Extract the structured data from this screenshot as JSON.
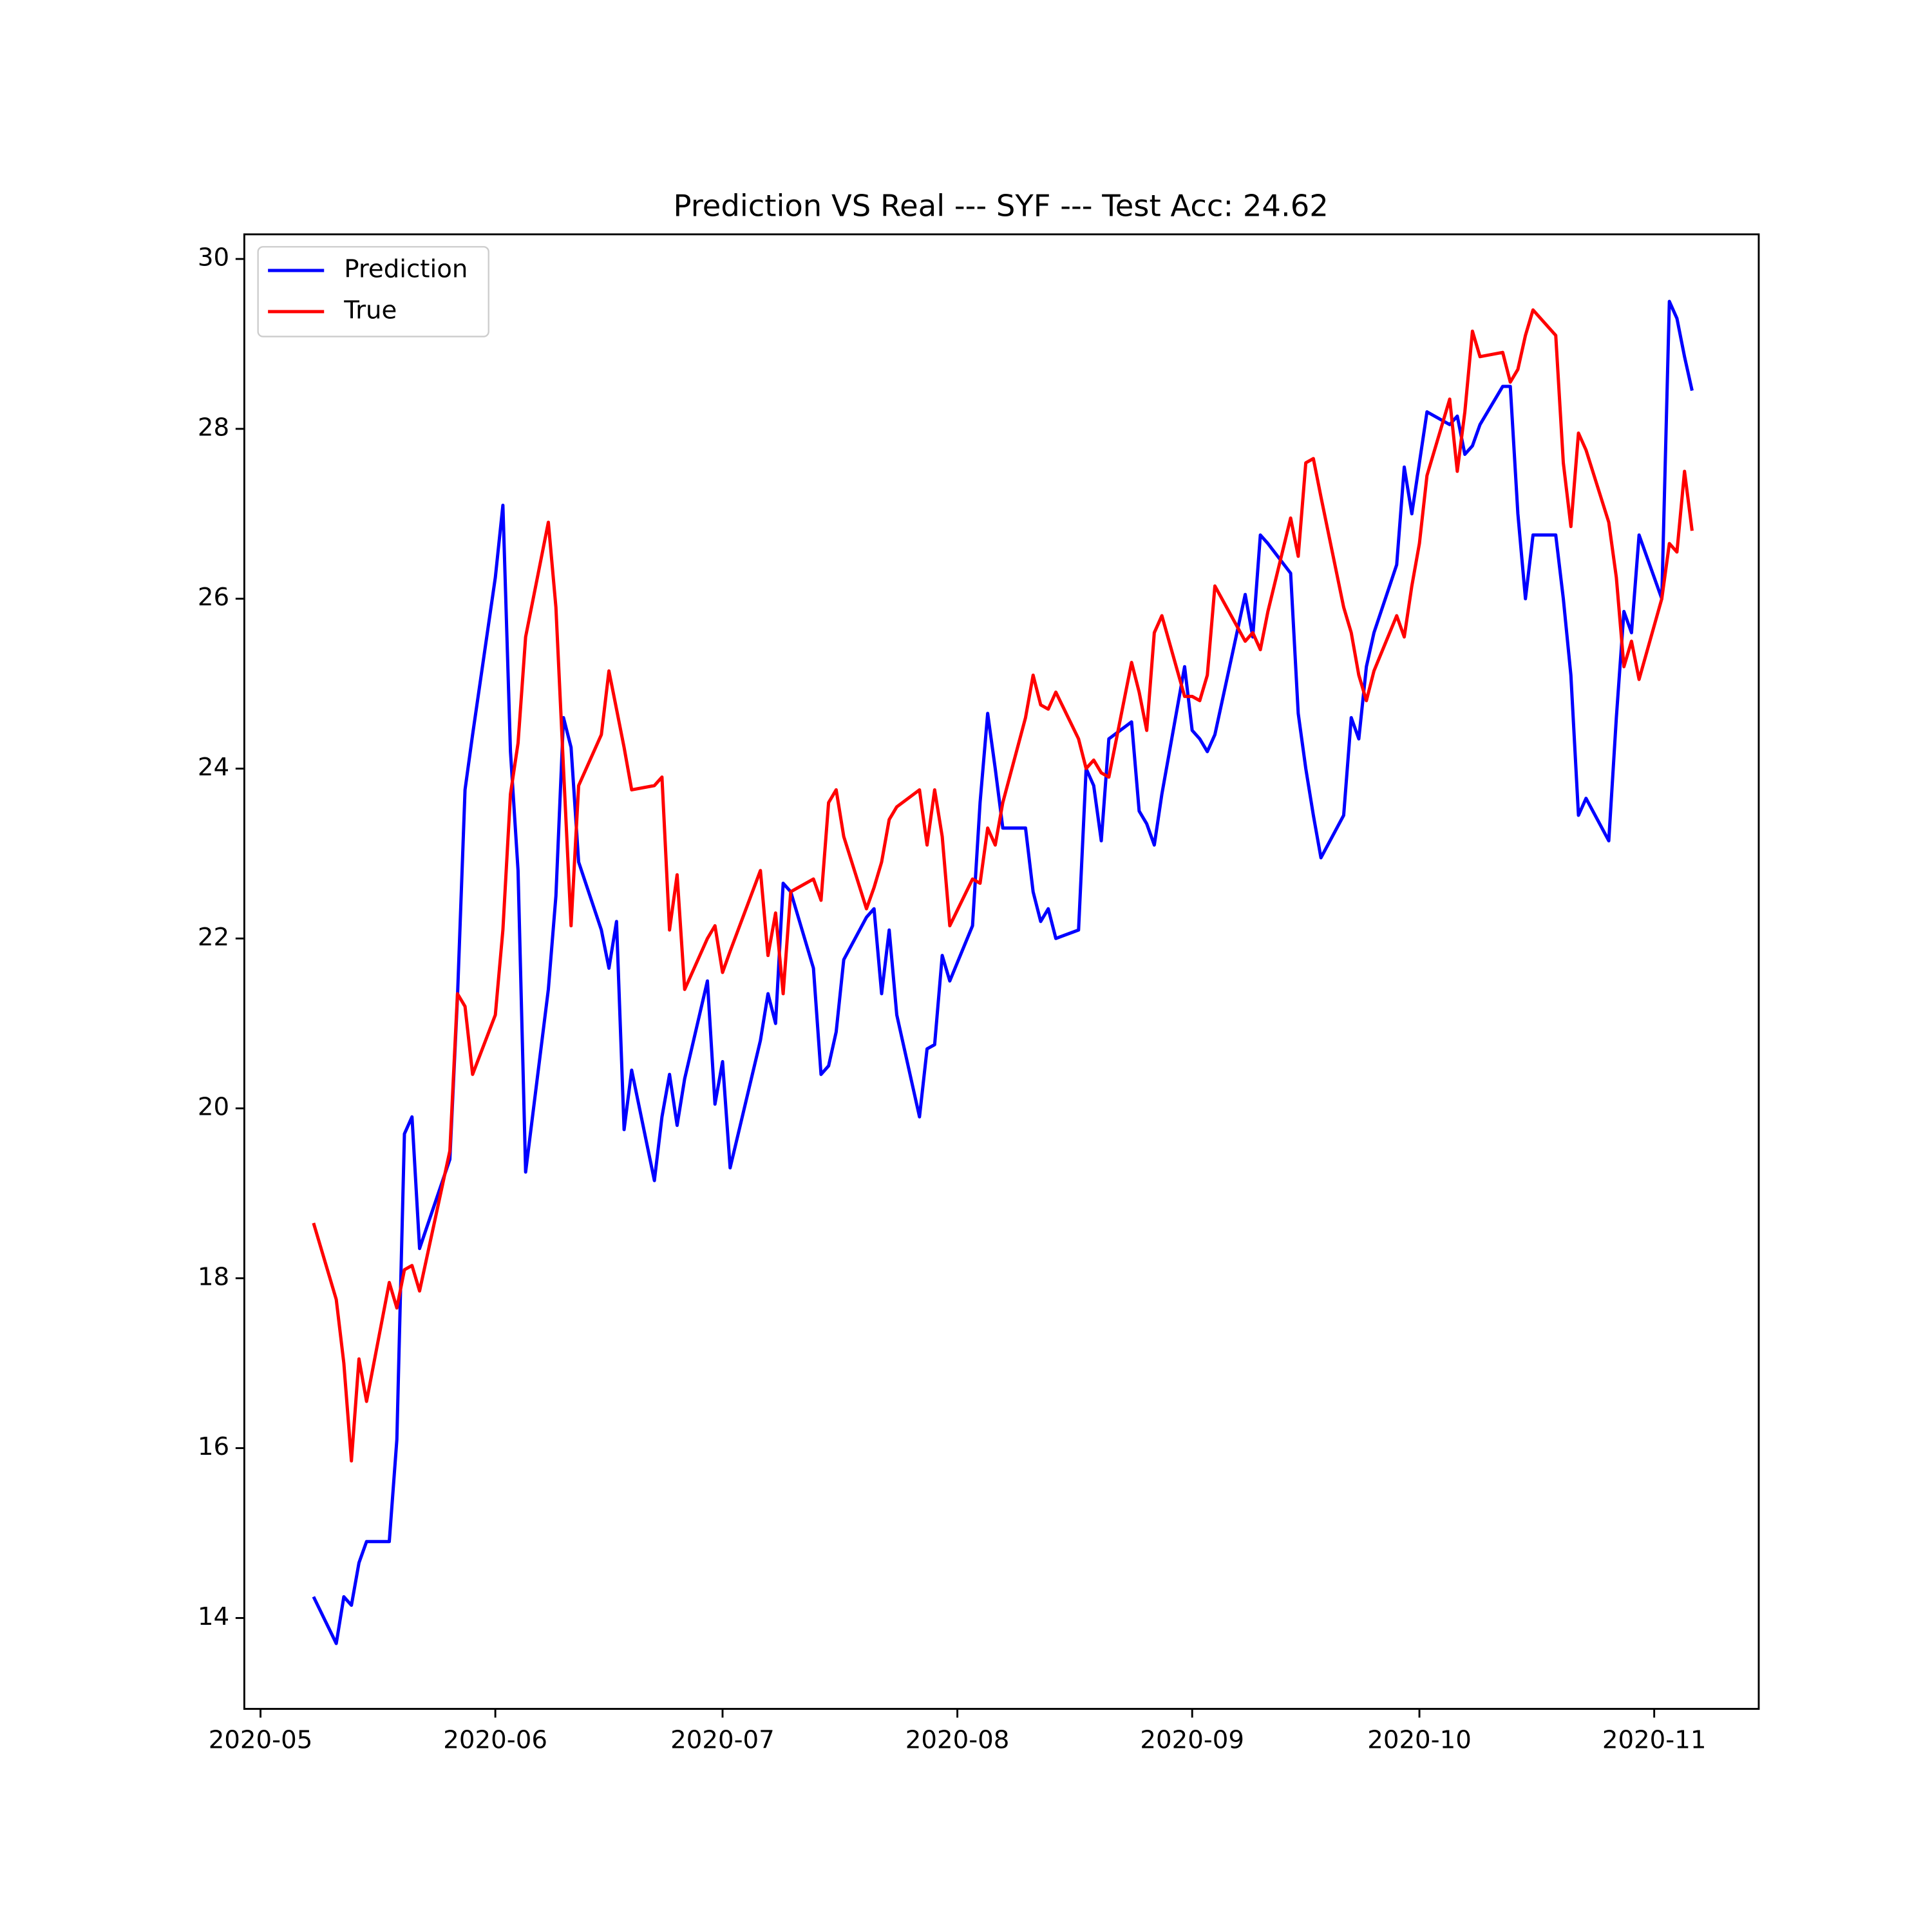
{
  "chart_data": {
    "type": "line",
    "title": "Prediction VS Real --- SYF --- Test Acc: 24.62",
    "x": [
      18390,
      18393,
      18394,
      18395,
      18396,
      18397,
      18400,
      18401,
      18402,
      18403,
      18404,
      18408,
      18409,
      18410,
      18411,
      18414,
      18415,
      18416,
      18417,
      18418,
      18421,
      18422,
      18423,
      18424,
      18425,
      18428,
      18429,
      18430,
      18431,
      18432,
      18435,
      18436,
      18437,
      18438,
      18439,
      18442,
      18443,
      18444,
      18445,
      18449,
      18450,
      18451,
      18452,
      18453,
      18456,
      18457,
      18458,
      18459,
      18460,
      18463,
      18464,
      18465,
      18466,
      18467,
      18470,
      18471,
      18472,
      18473,
      18474,
      18477,
      18478,
      18479,
      18480,
      18481,
      18484,
      18485,
      18486,
      18487,
      18488,
      18491,
      18492,
      18493,
      18494,
      18495,
      18498,
      18499,
      18500,
      18501,
      18502,
      18505,
      18506,
      18507,
      18508,
      18509,
      18513,
      18514,
      18515,
      18516,
      18519,
      18520,
      18521,
      18522,
      18523,
      18526,
      18527,
      18528,
      18529,
      18530,
      18533,
      18534,
      18535,
      18536,
      18537,
      18540,
      18541,
      18542,
      18543,
      18544,
      18547,
      18548,
      18549,
      18550,
      18551,
      18554,
      18555,
      18556,
      18557,
      18558,
      18561,
      18562,
      18563,
      18564,
      18565,
      18568,
      18569,
      18570,
      18571,
      18572
    ],
    "series": [
      {
        "name": "Prediction",
        "color": "#0000ff",
        "values": [
          14.25,
          13.7,
          14.25,
          14.15,
          14.65,
          14.9,
          14.9,
          16.1,
          19.7,
          19.9,
          18.35,
          19.4,
          21.3,
          23.75,
          24.4,
          26.25,
          27.1,
          24.2,
          22.8,
          19.25,
          21.4,
          22.5,
          24.6,
          24.25,
          22.9,
          22.1,
          21.65,
          22.2,
          19.75,
          20.45,
          19.15,
          19.9,
          20.4,
          19.8,
          20.35,
          21.5,
          20.05,
          20.55,
          19.3,
          20.8,
          21.35,
          21.0,
          22.65,
          22.55,
          21.65,
          20.4,
          20.5,
          20.9,
          21.75,
          22.25,
          22.35,
          21.35,
          22.1,
          21.1,
          19.9,
          20.7,
          20.75,
          21.8,
          21.5,
          22.15,
          23.6,
          24.65,
          24.0,
          23.3,
          23.3,
          22.55,
          22.2,
          22.35,
          22.0,
          22.1,
          24.0,
          23.8,
          23.15,
          24.35,
          24.55,
          23.5,
          23.35,
          23.1,
          23.7,
          25.2,
          24.45,
          24.35,
          24.2,
          24.4,
          26.05,
          25.55,
          26.75,
          26.65,
          26.3,
          24.65,
          24.0,
          23.45,
          22.95,
          23.45,
          24.6,
          24.35,
          25.2,
          25.6,
          26.4,
          27.55,
          27.0,
          27.6,
          28.2,
          28.05,
          28.15,
          27.7,
          27.8,
          28.05,
          28.5,
          28.5,
          27.0,
          26.0,
          26.75,
          26.75,
          26.0,
          25.1,
          23.45,
          23.65,
          23.15,
          24.6,
          25.85,
          25.6,
          26.75,
          26.0,
          29.5,
          29.3,
          28.85,
          28.45
        ]
      },
      {
        "name": "True",
        "color": "#ff0000",
        "values": [
          18.65,
          17.75,
          17.0,
          15.85,
          17.05,
          16.55,
          17.95,
          17.65,
          18.1,
          18.15,
          17.85,
          19.5,
          21.35,
          21.2,
          20.4,
          21.1,
          22.1,
          23.7,
          24.3,
          25.55,
          26.9,
          25.9,
          24.0,
          22.15,
          23.8,
          24.4,
          25.15,
          24.7,
          24.25,
          23.75,
          23.8,
          23.9,
          22.1,
          22.75,
          21.4,
          22.0,
          22.15,
          21.6,
          21.85,
          22.8,
          21.8,
          22.3,
          21.35,
          22.55,
          22.7,
          22.45,
          23.6,
          23.75,
          23.2,
          22.35,
          22.6,
          22.9,
          23.4,
          23.55,
          23.75,
          23.1,
          23.75,
          23.2,
          22.15,
          22.7,
          22.65,
          23.3,
          23.1,
          23.6,
          24.6,
          25.1,
          24.75,
          24.7,
          24.9,
          24.35,
          24.0,
          24.1,
          23.95,
          23.9,
          25.25,
          24.9,
          24.45,
          25.6,
          25.8,
          24.85,
          24.85,
          24.8,
          25.1,
          26.15,
          25.5,
          25.6,
          25.4,
          25.85,
          26.95,
          26.5,
          27.6,
          27.65,
          27.2,
          25.9,
          25.6,
          25.1,
          24.8,
          25.15,
          25.8,
          25.55,
          26.15,
          26.65,
          27.45,
          28.35,
          27.5,
          28.2,
          29.15,
          28.85,
          28.9,
          28.55,
          28.7,
          29.1,
          29.4,
          29.1,
          27.6,
          26.85,
          27.95,
          27.75,
          26.9,
          26.25,
          25.2,
          25.5,
          25.05,
          26.0,
          26.65,
          26.55,
          27.5,
          26.8
        ]
      }
    ],
    "xlim": [
      18380.86,
      18580.8
    ],
    "xticks": [
      {
        "value": 18383,
        "label": "2020-05"
      },
      {
        "value": 18414,
        "label": "2020-06"
      },
      {
        "value": 18444,
        "label": "2020-07"
      },
      {
        "value": 18475,
        "label": "2020-08"
      },
      {
        "value": 18506,
        "label": "2020-09"
      },
      {
        "value": 18536,
        "label": "2020-10"
      },
      {
        "value": 18567,
        "label": "2020-11"
      }
    ],
    "ylim": [
      12.93,
      30.29
    ],
    "yticks": [
      14,
      16,
      18,
      20,
      22,
      24,
      26,
      28,
      30
    ],
    "legend": "upper left"
  }
}
